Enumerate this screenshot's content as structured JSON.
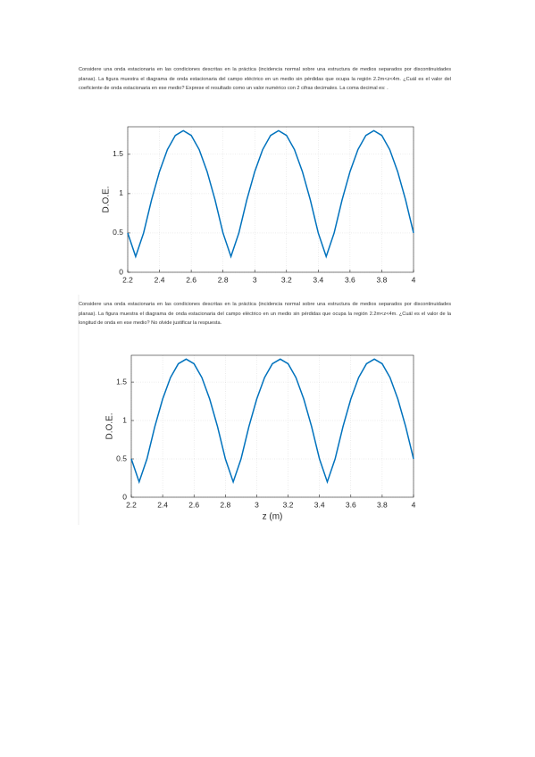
{
  "questions": [
    {
      "text": "Considere una onda estacionaria en las condiciones descritas en la práctica (incidencia normal sobre una estructura de medios separados por discontinuidades planas). La figura muestra el diagrama de onda estacionaria del campo eléctrico en un medio sin pérdidas que ocupa la región 2.2m<z<4m. ¿Cuál es el valor del coeficiente de onda estacionaria en ese medio? Exprese el resultado como un valor numérico con 2 cifras decimales. La coma decimal es: ."
    },
    {
      "text": "Considere una onda estacionaria en las condiciones descritas en la práctica (incidencia normal sobre una estructura de medios separados por discontinuidades planas). La figura muestra el diagrama de onda estacionaria del campo eléctrico en un medio sin pérdidas que ocupa la región 2.2m<z<4m. ¿Cuál es el valor de la longitud de onda en ese medio? No olvide justificar la respuesta."
    }
  ],
  "chart_data": [
    {
      "type": "line",
      "ylabel": "D.O.E.",
      "x": [
        2.2,
        2.25,
        2.3,
        2.35,
        2.4,
        2.45,
        2.5,
        2.55,
        2.6,
        2.65,
        2.7,
        2.75,
        2.8,
        2.85,
        2.9,
        2.95,
        3,
        3.05,
        3.1,
        3.15,
        3.2,
        3.25,
        3.3,
        3.35,
        3.4,
        3.45,
        3.5,
        3.55,
        3.6,
        3.65,
        3.7,
        3.75,
        3.8,
        3.85,
        3.9,
        3.95,
        4
      ],
      "series": [
        {
          "color": "#0072bd",
          "values": [
            0.5,
            0.2,
            0.5,
            0.92,
            1.28,
            1.56,
            1.74,
            1.8,
            1.74,
            1.56,
            1.28,
            0.92,
            0.5,
            0.2,
            0.5,
            0.92,
            1.28,
            1.56,
            1.74,
            1.8,
            1.74,
            1.56,
            1.28,
            0.92,
            0.5,
            0.2,
            0.5,
            0.92,
            1.28,
            1.56,
            1.74,
            1.8,
            1.74,
            1.56,
            1.28,
            0.92,
            0.5
          ]
        }
      ],
      "xlim": [
        2.2,
        4
      ],
      "xticks": [
        2.2,
        2.4,
        2.6,
        2.8,
        3,
        3.2,
        3.4,
        3.6,
        3.8,
        4
      ],
      "ylim": [
        0,
        1.85
      ],
      "yticks": [
        0,
        0.5,
        1,
        1.5
      ],
      "grid": true
    },
    {
      "type": "line",
      "ylabel": "D.O.E.",
      "xlabel": "z (m)",
      "x": [
        2.2,
        2.25,
        2.3,
        2.35,
        2.4,
        2.45,
        2.5,
        2.55,
        2.6,
        2.65,
        2.7,
        2.75,
        2.8,
        2.85,
        2.9,
        2.95,
        3,
        3.05,
        3.1,
        3.15,
        3.2,
        3.25,
        3.3,
        3.35,
        3.4,
        3.45,
        3.5,
        3.55,
        3.6,
        3.65,
        3.7,
        3.75,
        3.8,
        3.85,
        3.9,
        3.95,
        4
      ],
      "series": [
        {
          "color": "#0072bd",
          "values": [
            0.5,
            0.2,
            0.5,
            0.92,
            1.28,
            1.56,
            1.74,
            1.8,
            1.74,
            1.56,
            1.28,
            0.92,
            0.5,
            0.2,
            0.5,
            0.92,
            1.28,
            1.56,
            1.74,
            1.8,
            1.74,
            1.56,
            1.28,
            0.92,
            0.5,
            0.2,
            0.5,
            0.92,
            1.28,
            1.56,
            1.74,
            1.8,
            1.74,
            1.56,
            1.28,
            0.92,
            0.5
          ]
        }
      ],
      "xlim": [
        2.2,
        4
      ],
      "xticks": [
        2.2,
        2.4,
        2.6,
        2.8,
        3,
        3.2,
        3.4,
        3.6,
        3.8,
        4
      ],
      "ylim": [
        0,
        1.85
      ],
      "yticks": [
        0,
        0.5,
        1,
        1.5
      ],
      "grid": true
    }
  ]
}
